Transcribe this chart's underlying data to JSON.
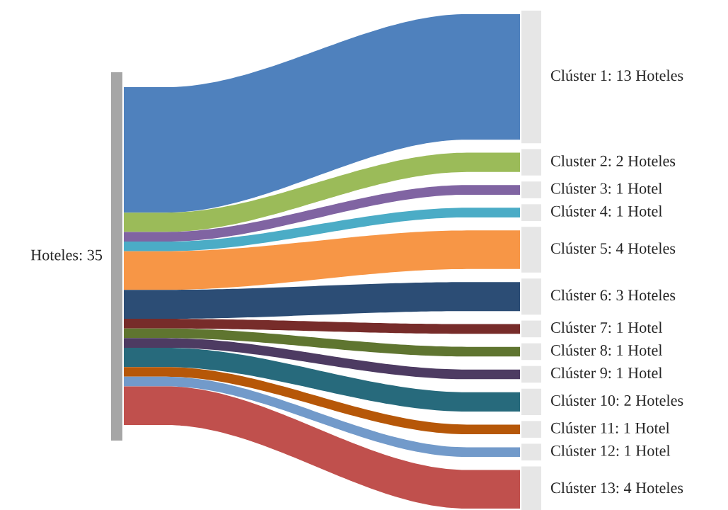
{
  "chart_data": {
    "type": "other",
    "annotations": [
      "Hoteles: 35"
    ],
    "categories": [
      "Clúster 1",
      "Cluster 2",
      "Clúster 3",
      "Clúster 4",
      "Clúster 5",
      "Clúster 6",
      "Clúster 7",
      "Clúster 8",
      "Clúster 9",
      "Clúster 10",
      "Clúster 11",
      "Clúster 12",
      "Clúster 13"
    ],
    "values": [
      13,
      2,
      1,
      1,
      4,
      3,
      1,
      1,
      1,
      2,
      1,
      1,
      4
    ],
    "value_labels": [
      ": 13 Hoteles",
      ": 2 Hoteles",
      ": 1 Hotel",
      ": 1 Hotel",
      ": 4 Hoteles",
      ": 3 Hoteles",
      ": 1 Hotel",
      ": 1 Hotel",
      ": 1 Hotel",
      ": 2 Hoteles",
      ": 1 Hotel",
      ": 1 Hotel",
      ": 4 Hoteles"
    ],
    "colors": [
      "#4f81bd",
      "#9bbb59",
      "#8064a2",
      "#4bacc6",
      "#f79646",
      "#2c4d75",
      "#772c2a",
      "#5f7530",
      "#4d3b62",
      "#276a7c",
      "#b65708",
      "#729aca",
      "#c0504d"
    ]
  }
}
